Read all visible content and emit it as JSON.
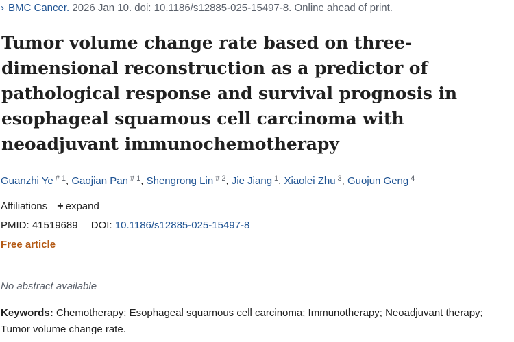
{
  "citation": {
    "journal": "BMC Cancer.",
    "details": " 2026 Jan 10. doi: 10.1186/s12885-025-15497-8. Online ahead of print."
  },
  "article": {
    "title": "Tumor volume change rate based on three-dimensional reconstruction as a predictor of pathological response and survival prognosis in esophageal squamous cell carcinoma with neoadjuvant immunochemotherapy"
  },
  "authors": [
    {
      "name": "Guanzhi Ye",
      "sup": "# 1"
    },
    {
      "name": "Gaojian Pan",
      "sup": "# 1"
    },
    {
      "name": "Shengrong Lin",
      "sup": "# 2"
    },
    {
      "name": "Jie Jiang",
      "sup": "1"
    },
    {
      "name": "Xiaolei Zhu",
      "sup": "3"
    },
    {
      "name": "Guojun Geng",
      "sup": "4"
    }
  ],
  "affiliations": {
    "label": "Affiliations",
    "expand_icon": "plus-icon",
    "expand_label": "expand"
  },
  "ids": {
    "pmid_label": "PMID: 41519689",
    "doi_label": "DOI:",
    "doi_value": "10.1186/s12885-025-15497-8"
  },
  "access": {
    "free_label": "Free article"
  },
  "abstract": {
    "placeholder": "No abstract available"
  },
  "keywords": {
    "label": "Keywords:",
    "text": " Chemotherapy; Esophageal squamous cell carcinoma; Immunotherapy; Neoadjuvant therapy; Tumor volume change rate."
  },
  "colors": {
    "link": "#205493",
    "muted": "#5b616b",
    "free": "#b45a15",
    "text": "#212121"
  }
}
